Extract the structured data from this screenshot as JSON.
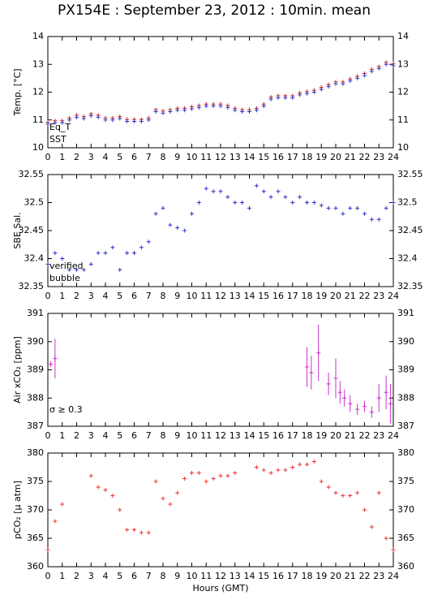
{
  "title": "PX154E : September 23, 2012 : 10min. mean",
  "chart_data": [
    {
      "type": "scatter",
      "ylabel": "Temp. [°C]",
      "xlim": [
        0,
        24
      ],
      "xticks": [
        0,
        1,
        2,
        3,
        4,
        5,
        6,
        7,
        8,
        9,
        10,
        11,
        12,
        13,
        14,
        15,
        16,
        17,
        18,
        19,
        20,
        21,
        22,
        23,
        24
      ],
      "ylim": [
        10,
        14
      ],
      "yticks": [
        10,
        11,
        12,
        13,
        14
      ],
      "x": [
        0,
        0.5,
        1,
        1.5,
        2,
        2.5,
        3,
        3.5,
        4,
        4.5,
        5,
        5.5,
        6,
        6.5,
        7,
        7.5,
        8,
        8.5,
        9,
        9.5,
        10,
        10.5,
        11,
        11.5,
        12,
        12.5,
        13,
        13.5,
        14,
        14.5,
        15,
        15.5,
        16,
        16.5,
        17,
        17.5,
        18,
        18.5,
        19,
        19.5,
        20,
        20.5,
        21,
        21.5,
        22,
        22.5,
        23,
        23.5,
        24
      ],
      "series": [
        {
          "name": "Eq_T",
          "color": "#cc2222",
          "values": [
            10.92,
            10.97,
            10.97,
            11.07,
            11.17,
            11.12,
            11.22,
            11.17,
            11.07,
            11.07,
            11.12,
            11.02,
            11.02,
            11.02,
            11.07,
            11.37,
            11.32,
            11.37,
            11.42,
            11.42,
            11.47,
            11.52,
            11.57,
            11.57,
            11.57,
            11.52,
            11.42,
            11.37,
            11.37,
            11.42,
            11.57,
            11.82,
            11.87,
            11.87,
            11.87,
            11.97,
            12.02,
            12.07,
            12.17,
            12.27,
            12.37,
            12.37,
            12.47,
            12.57,
            12.67,
            12.82,
            12.92,
            13.07,
            13.02
          ]
        },
        {
          "name": "SST",
          "color": "#3333cc",
          "values": [
            10.85,
            10.9,
            10.9,
            11.0,
            11.1,
            11.05,
            11.15,
            11.1,
            11.0,
            11.0,
            11.05,
            10.95,
            10.95,
            10.95,
            11.0,
            11.3,
            11.25,
            11.3,
            11.35,
            11.35,
            11.4,
            11.45,
            11.5,
            11.5,
            11.5,
            11.45,
            11.35,
            11.3,
            11.3,
            11.35,
            11.5,
            11.75,
            11.8,
            11.8,
            11.8,
            11.9,
            11.95,
            12.0,
            12.1,
            12.2,
            12.3,
            12.3,
            12.4,
            12.5,
            12.6,
            12.75,
            12.85,
            13.0,
            12.95
          ]
        }
      ]
    },
    {
      "type": "scatter",
      "ylabel": "SBE Sal.",
      "xlim": [
        0,
        24
      ],
      "xticks": [
        0,
        1,
        2,
        3,
        4,
        5,
        6,
        7,
        8,
        9,
        10,
        11,
        12,
        13,
        14,
        15,
        16,
        17,
        18,
        19,
        20,
        21,
        22,
        23,
        24
      ],
      "ylim": [
        32.35,
        32.55
      ],
      "yticks": [
        32.35,
        32.4,
        32.45,
        32.5,
        32.55
      ],
      "x": [
        0,
        0.5,
        1,
        1.5,
        2,
        2.5,
        3,
        3.5,
        4,
        4.5,
        5,
        5.5,
        6,
        6.5,
        7,
        7.5,
        8,
        8.5,
        9,
        9.5,
        10,
        10.5,
        11,
        11.5,
        12,
        12.5,
        13,
        13.5,
        14,
        14.5,
        15,
        15.5,
        16,
        16.5,
        17,
        17.5,
        18,
        18.5,
        19,
        19.5,
        20,
        20.5,
        21,
        21.5,
        22,
        22.5,
        23,
        23.5,
        24
      ],
      "series": [
        {
          "name": "verified",
          "color": "#3333cc",
          "values": [
            32.39,
            32.41,
            32.4,
            32.38,
            32.38,
            32.38,
            32.39,
            32.41,
            32.41,
            32.42,
            32.38,
            32.41,
            32.41,
            32.42,
            32.43,
            32.48,
            32.49,
            32.46,
            32.455,
            32.45,
            32.48,
            32.5,
            32.525,
            32.52,
            32.52,
            32.51,
            32.5,
            32.5,
            32.49,
            32.53,
            32.52,
            32.51,
            32.52,
            32.51,
            32.5,
            32.51,
            32.5,
            32.5,
            32.495,
            32.49,
            32.49,
            32.48,
            32.49,
            32.49,
            32.48,
            32.47,
            32.47,
            32.49,
            32.5
          ]
        }
      ],
      "legend": [
        {
          "name": "bubble",
          "color": "#cc22cc"
        }
      ]
    },
    {
      "type": "scatter",
      "ylabel": "Air xCO₂ [ppm]",
      "xlim": [
        0,
        24
      ],
      "xticks": [
        0,
        1,
        2,
        3,
        4,
        5,
        6,
        7,
        8,
        9,
        10,
        11,
        12,
        13,
        14,
        15,
        16,
        17,
        18,
        19,
        20,
        21,
        22,
        23,
        24
      ],
      "ylim": [
        387,
        391
      ],
      "yticks": [
        387,
        388,
        389,
        390,
        391
      ],
      "annotation": "σ ≥ 0.3",
      "annotation_color": "#cc22cc",
      "x": [
        0.2,
        0.5,
        18,
        18.3,
        18.8,
        19.5,
        20,
        20.3,
        20.6,
        21,
        21.5,
        22,
        22.5,
        23,
        23.5,
        23.8
      ],
      "series": [
        {
          "color": "#cc33cc",
          "values": [
            389.2,
            389.4,
            389.1,
            388.9,
            389.6,
            388.5,
            388.7,
            388.2,
            388.0,
            387.8,
            387.6,
            387.7,
            387.5,
            388.0,
            388.2,
            387.8
          ],
          "errors": [
            0.1,
            0.7,
            0.7,
            0.6,
            1.0,
            0.4,
            0.7,
            0.4,
            0.3,
            0.3,
            0.2,
            0.2,
            0.2,
            0.5,
            0.6,
            0.7
          ]
        }
      ]
    },
    {
      "type": "scatter",
      "ylabel": "pCO₂ [µ atm]",
      "xlabel": "Hours (GMT)",
      "xlim": [
        0,
        24
      ],
      "xticks": [
        0,
        1,
        2,
        3,
        4,
        5,
        6,
        7,
        8,
        9,
        10,
        11,
        12,
        13,
        14,
        15,
        16,
        17,
        18,
        19,
        20,
        21,
        22,
        23,
        24
      ],
      "ylim": [
        360,
        380
      ],
      "yticks": [
        360,
        365,
        370,
        375,
        380
      ],
      "x": [
        0,
        0.5,
        1,
        1.5,
        2,
        2.5,
        3,
        3.5,
        4,
        4.5,
        5,
        5.5,
        6,
        6.5,
        7,
        7.5,
        8,
        8.5,
        9,
        9.5,
        10,
        10.5,
        11,
        11.5,
        12,
        12.5,
        13,
        13.5,
        14,
        14.5,
        15,
        15.5,
        16,
        16.5,
        17,
        17.5,
        18,
        18.5,
        19,
        19.5,
        20,
        20.5,
        21,
        21.5,
        22,
        22.5,
        23,
        23.5,
        24
      ],
      "series": [
        {
          "color": "#ee3333",
          "values": [
            363,
            368,
            371,
            null,
            null,
            null,
            376,
            374,
            373.5,
            372.5,
            370,
            366.5,
            366.5,
            366,
            366,
            375,
            372,
            371,
            373,
            375.5,
            376.5,
            376.5,
            375,
            375.5,
            376,
            376,
            376.5,
            null,
            null,
            377.5,
            377,
            376.5,
            377,
            377,
            377.5,
            378,
            378,
            378.5,
            375,
            374,
            373,
            372.5,
            372.5,
            373,
            370,
            367,
            373,
            365,
            363
          ]
        }
      ]
    }
  ]
}
